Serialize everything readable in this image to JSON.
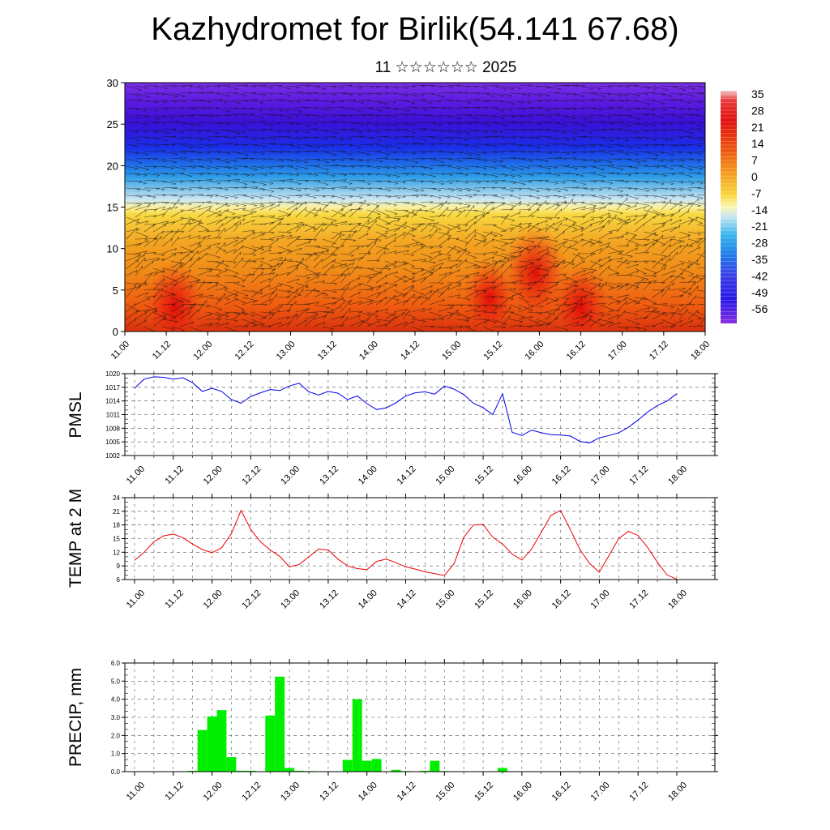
{
  "title": "Kazhydromet for Birlik(54.141 67.68)",
  "subtitle": "11 ☆☆☆☆☆☆ 2025",
  "date_ticks": [
    "11.00",
    "11.12",
    "12.00",
    "12.12",
    "13.00",
    "13.12",
    "14.00",
    "14.12",
    "15.00",
    "15.12",
    "16.00",
    "16.12",
    "17.00",
    "17.12",
    "18.00"
  ],
  "colors": {
    "pmsl_line": "#0000ee",
    "temp_line": "#ee0000",
    "precip_bar": "#00ee00"
  },
  "chart_data": [
    {
      "type": "heatmap",
      "title": "",
      "xlabel": "",
      "ylabel": "",
      "x_range": [
        "11.00",
        "18.00"
      ],
      "ylim": [
        0,
        30
      ],
      "yticks": [
        0,
        5,
        10,
        15,
        20,
        25,
        30
      ],
      "colorbar": {
        "labels": [
          "35",
          "28",
          "21",
          "14",
          "7",
          "0",
          "-7",
          "-14",
          "-21",
          "-28",
          "-35",
          "-42",
          "-49",
          "-56"
        ],
        "placement": "right"
      },
      "overlay": "wind vectors",
      "warm_spots": [
        {
          "x": 11.6,
          "y": 3,
          "value": 30
        },
        {
          "x": 15.95,
          "y": 7,
          "value": 32
        },
        {
          "x": 16.5,
          "y": 3,
          "value": 28
        },
        {
          "x": 15.4,
          "y": 4,
          "value": 24
        }
      ]
    },
    {
      "type": "line",
      "ylabel": "PMSL",
      "ylim": [
        1002,
        1020
      ],
      "yticks": [
        "1002",
        "1005",
        "1008",
        "1011",
        "1014",
        "1017",
        "1020"
      ],
      "x": [
        "11.00",
        "11.03",
        "11.06",
        "11.09",
        "11.12",
        "11.15",
        "11.18",
        "11.21",
        "12.00",
        "12.03",
        "12.06",
        "12.09",
        "12.12",
        "12.15",
        "12.18",
        "12.21",
        "13.00",
        "13.03",
        "13.06",
        "13.09",
        "13.12",
        "13.15",
        "13.18",
        "13.21",
        "14.00",
        "14.03",
        "14.06",
        "14.09",
        "14.12",
        "14.15",
        "14.18",
        "14.21",
        "15.00",
        "15.03",
        "15.06",
        "15.09",
        "15.12",
        "15.15",
        "15.18",
        "15.21",
        "16.00",
        "16.03",
        "16.06",
        "16.09",
        "16.12",
        "16.15",
        "16.18",
        "16.21",
        "17.00",
        "17.03",
        "17.06",
        "17.09",
        "17.12",
        "17.15",
        "17.18",
        "17.21",
        "18.00"
      ],
      "series": [
        {
          "values": [
            1016.8,
            1018.8,
            1019.3,
            1019.2,
            1018.8,
            1019.1,
            1018.0,
            1016.1,
            1016.8,
            1016.1,
            1014.3,
            1013.5,
            1015.0,
            1015.8,
            1016.5,
            1016.3,
            1017.3,
            1017.9,
            1016.0,
            1015.3,
            1016.1,
            1015.7,
            1014.3,
            1015.1,
            1013.4,
            1012.1,
            1012.5,
            1013.6,
            1015.1,
            1015.8,
            1016.0,
            1015.5,
            1017.3,
            1016.6,
            1015.4,
            1013.5,
            1012.5,
            1011.0,
            1015.6,
            1007.1,
            1006.4,
            1007.6,
            1007.0,
            1006.6,
            1006.5,
            1006.3,
            1005.1,
            1004.8,
            1005.9,
            1006.4,
            1007.0,
            1008.2,
            1009.8,
            1011.6,
            1013.0,
            1014.0,
            1015.6
          ]
        }
      ]
    },
    {
      "type": "line",
      "ylabel": "TEMP at 2 M",
      "ylim": [
        6,
        24
      ],
      "yticks": [
        "6",
        "9",
        "12",
        "15",
        "18",
        "21",
        "24"
      ],
      "x": [
        "11.00",
        "11.03",
        "11.06",
        "11.09",
        "11.12",
        "11.15",
        "11.18",
        "11.21",
        "12.00",
        "12.03",
        "12.06",
        "12.09",
        "12.12",
        "12.15",
        "12.18",
        "12.21",
        "13.00",
        "13.03",
        "13.06",
        "13.09",
        "13.12",
        "13.15",
        "13.18",
        "13.21",
        "14.00",
        "14.03",
        "14.06",
        "14.09",
        "14.12",
        "14.15",
        "14.18",
        "14.21",
        "15.00",
        "15.03",
        "15.06",
        "15.09",
        "15.12",
        "15.15",
        "15.18",
        "15.21",
        "16.00",
        "16.03",
        "16.06",
        "16.09",
        "16.12",
        "16.15",
        "16.18",
        "16.21",
        "17.00",
        "17.03",
        "17.06",
        "17.09",
        "17.12",
        "17.15",
        "17.18",
        "17.21",
        "18.00"
      ],
      "series": [
        {
          "values": [
            10.2,
            12.0,
            14.3,
            15.6,
            16.0,
            15.2,
            13.8,
            12.6,
            11.9,
            13.0,
            16.1,
            21.2,
            17.0,
            14.3,
            12.5,
            11.1,
            8.8,
            9.3,
            11.0,
            12.7,
            12.5,
            10.5,
            9.0,
            8.4,
            8.2,
            10.0,
            10.5,
            9.7,
            8.8,
            8.3,
            7.7,
            7.3,
            6.9,
            9.5,
            15.3,
            18.0,
            18.1,
            15.3,
            13.8,
            11.6,
            10.3,
            12.7,
            16.4,
            20.1,
            21.2,
            17.0,
            12.6,
            9.5,
            7.6,
            11.3,
            15.0,
            16.6,
            15.7,
            13.0,
            9.8,
            7.0,
            6.1
          ]
        }
      ]
    },
    {
      "type": "bar",
      "ylabel": "PRECIP, mm",
      "ylim": [
        0,
        6
      ],
      "yticks": [
        "0.0",
        "1.0",
        "2.0",
        "3.0",
        "4.0",
        "5.0",
        "6.0"
      ],
      "x": [
        "11.00",
        "11.03",
        "11.06",
        "11.09",
        "11.12",
        "11.15",
        "11.18",
        "11.21",
        "12.00",
        "12.03",
        "12.06",
        "12.09",
        "12.12",
        "12.15",
        "12.18",
        "12.21",
        "13.00",
        "13.03",
        "13.06",
        "13.09",
        "13.12",
        "13.15",
        "13.18",
        "13.21",
        "14.00",
        "14.03",
        "14.06",
        "14.09",
        "14.12",
        "14.15",
        "14.18",
        "14.21",
        "15.00",
        "15.03",
        "15.06",
        "15.09",
        "15.12",
        "15.15",
        "15.18",
        "15.21",
        "16.00",
        "16.03",
        "16.06",
        "16.09",
        "16.12",
        "16.15",
        "16.18",
        "16.21",
        "17.00",
        "17.03",
        "17.06",
        "17.09",
        "17.12",
        "17.15",
        "17.18",
        "17.21",
        "18.00"
      ],
      "values": [
        0,
        0,
        0,
        0,
        0,
        0,
        0.05,
        2.3,
        3.05,
        3.4,
        0.8,
        0.05,
        0.05,
        0,
        3.1,
        5.25,
        0.2,
        0.05,
        0.03,
        0,
        0,
        0,
        0.65,
        4.0,
        0.6,
        0.7,
        0,
        0.1,
        0.03,
        0,
        0.05,
        0.6,
        0.03,
        0,
        0,
        0,
        0,
        0,
        0.2,
        0.02,
        0,
        0,
        0,
        0,
        0,
        0,
        0,
        0,
        0,
        0,
        0,
        0,
        0,
        0,
        0,
        0,
        0
      ]
    }
  ]
}
